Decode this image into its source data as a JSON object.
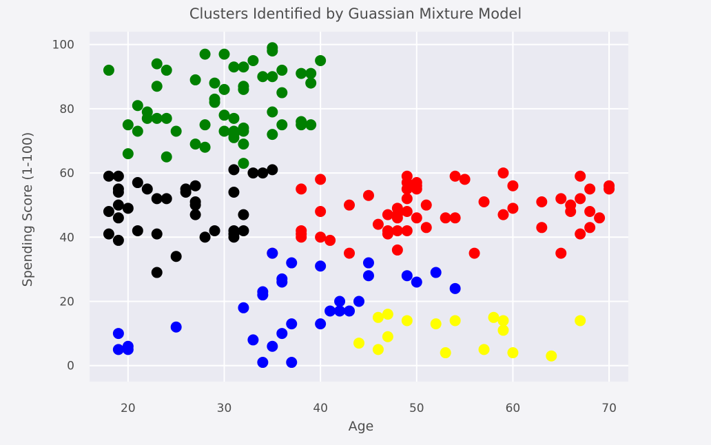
{
  "chart_data": {
    "type": "scatter",
    "title": "Clusters Identified by Guassian Mixture Model",
    "xlabel": "Age",
    "ylabel": "Spending Score (1-100)",
    "xlim": [
      16,
      72
    ],
    "ylim": [
      -5,
      104
    ],
    "xticks": [
      20,
      30,
      40,
      50,
      60,
      70
    ],
    "yticks": [
      0,
      20,
      40,
      60,
      80,
      100
    ],
    "grid": true,
    "background": "#eaeaf2",
    "series": [
      {
        "color": "#008000",
        "points": [
          [
            18,
            92
          ],
          [
            20,
            75
          ],
          [
            20,
            66
          ],
          [
            21,
            81
          ],
          [
            21,
            73
          ],
          [
            22,
            79
          ],
          [
            22,
            77
          ],
          [
            23,
            94
          ],
          [
            23,
            87
          ],
          [
            23,
            77
          ],
          [
            24,
            92
          ],
          [
            24,
            77
          ],
          [
            24,
            65
          ],
          [
            25,
            73
          ],
          [
            27,
            89
          ],
          [
            27,
            69
          ],
          [
            28,
            97
          ],
          [
            28,
            75
          ],
          [
            28,
            68
          ],
          [
            29,
            88
          ],
          [
            29,
            83
          ],
          [
            29,
            82
          ],
          [
            30,
            86
          ],
          [
            30,
            97
          ],
          [
            30,
            73
          ],
          [
            30,
            78
          ],
          [
            31,
            93
          ],
          [
            31,
            77
          ],
          [
            31,
            73
          ],
          [
            31,
            71
          ],
          [
            31,
            72
          ],
          [
            32,
            93
          ],
          [
            32,
            87
          ],
          [
            32,
            86
          ],
          [
            32,
            74
          ],
          [
            32,
            73
          ],
          [
            32,
            69
          ],
          [
            32,
            63
          ],
          [
            33,
            95
          ],
          [
            34,
            90
          ],
          [
            35,
            99
          ],
          [
            35,
            98
          ],
          [
            35,
            90
          ],
          [
            35,
            79
          ],
          [
            35,
            72
          ],
          [
            36,
            92
          ],
          [
            36,
            85
          ],
          [
            36,
            75
          ],
          [
            38,
            91
          ],
          [
            38,
            76
          ],
          [
            38,
            75
          ],
          [
            39,
            91
          ],
          [
            39,
            88
          ],
          [
            39,
            75
          ],
          [
            40,
            95
          ]
        ]
      },
      {
        "color": "#000000",
        "points": [
          [
            18,
            59
          ],
          [
            18,
            48
          ],
          [
            18,
            41
          ],
          [
            19,
            59
          ],
          [
            19,
            55
          ],
          [
            19,
            54
          ],
          [
            19,
            50
          ],
          [
            19,
            46
          ],
          [
            19,
            39
          ],
          [
            20,
            49
          ],
          [
            21,
            57
          ],
          [
            21,
            42
          ],
          [
            22,
            55
          ],
          [
            23,
            52
          ],
          [
            23,
            41
          ],
          [
            23,
            29
          ],
          [
            24,
            52
          ],
          [
            25,
            34
          ],
          [
            26,
            55
          ],
          [
            26,
            54
          ],
          [
            27,
            56
          ],
          [
            27,
            51
          ],
          [
            27,
            50
          ],
          [
            27,
            47
          ],
          [
            28,
            40
          ],
          [
            29,
            42
          ],
          [
            31,
            61
          ],
          [
            31,
            54
          ],
          [
            31,
            42
          ],
          [
            31,
            41
          ],
          [
            31,
            40
          ],
          [
            32,
            47
          ],
          [
            32,
            42
          ],
          [
            33,
            60
          ],
          [
            34,
            60
          ],
          [
            35,
            61
          ]
        ]
      },
      {
        "color": "#ff0000",
        "points": [
          [
            35,
            35
          ],
          [
            38,
            55
          ],
          [
            38,
            42
          ],
          [
            38,
            41
          ],
          [
            38,
            40
          ],
          [
            40,
            58
          ],
          [
            40,
            48
          ],
          [
            40,
            40
          ],
          [
            41,
            39
          ],
          [
            43,
            50
          ],
          [
            43,
            35
          ],
          [
            45,
            53
          ],
          [
            46,
            44
          ],
          [
            47,
            47
          ],
          [
            47,
            42
          ],
          [
            47,
            41
          ],
          [
            48,
            49
          ],
          [
            48,
            47
          ],
          [
            48,
            46
          ],
          [
            48,
            42
          ],
          [
            48,
            36
          ],
          [
            49,
            59
          ],
          [
            49,
            57
          ],
          [
            49,
            55
          ],
          [
            49,
            52
          ],
          [
            49,
            48
          ],
          [
            49,
            42
          ],
          [
            50,
            57
          ],
          [
            50,
            56
          ],
          [
            50,
            55
          ],
          [
            50,
            46
          ],
          [
            51,
            50
          ],
          [
            51,
            43
          ],
          [
            53,
            46
          ],
          [
            54,
            59
          ],
          [
            54,
            46
          ],
          [
            55,
            58
          ],
          [
            56,
            35
          ],
          [
            57,
            51
          ],
          [
            59,
            60
          ],
          [
            59,
            47
          ],
          [
            60,
            56
          ],
          [
            60,
            49
          ],
          [
            63,
            51
          ],
          [
            63,
            43
          ],
          [
            65,
            52
          ],
          [
            65,
            35
          ],
          [
            66,
            50
          ],
          [
            66,
            48
          ],
          [
            67,
            59
          ],
          [
            67,
            52
          ],
          [
            67,
            41
          ],
          [
            68,
            55
          ],
          [
            68,
            48
          ],
          [
            68,
            43
          ],
          [
            69,
            46
          ],
          [
            70,
            56
          ],
          [
            70,
            55
          ]
        ]
      },
      {
        "color": "#0000ff",
        "points": [
          [
            19,
            10
          ],
          [
            19,
            5
          ],
          [
            20,
            6
          ],
          [
            20,
            5
          ],
          [
            25,
            12
          ],
          [
            32,
            18
          ],
          [
            33,
            8
          ],
          [
            34,
            23
          ],
          [
            34,
            22
          ],
          [
            34,
            1
          ],
          [
            35,
            6
          ],
          [
            35,
            35
          ],
          [
            36,
            27
          ],
          [
            36,
            26
          ],
          [
            36,
            10
          ],
          [
            37,
            32
          ],
          [
            37,
            13
          ],
          [
            37,
            1
          ],
          [
            40,
            31
          ],
          [
            40,
            13
          ],
          [
            41,
            17
          ],
          [
            42,
            20
          ],
          [
            42,
            17
          ],
          [
            43,
            17
          ],
          [
            44,
            20
          ],
          [
            45,
            32
          ],
          [
            45,
            28
          ],
          [
            49,
            28
          ],
          [
            50,
            26
          ],
          [
            52,
            29
          ],
          [
            54,
            24
          ]
        ]
      },
      {
        "color": "#ffff00",
        "points": [
          [
            44,
            7
          ],
          [
            46,
            15
          ],
          [
            46,
            5
          ],
          [
            47,
            16
          ],
          [
            47,
            9
          ],
          [
            49,
            14
          ],
          [
            52,
            13
          ],
          [
            53,
            4
          ],
          [
            54,
            14
          ],
          [
            57,
            5
          ],
          [
            58,
            15
          ],
          [
            59,
            14
          ],
          [
            59,
            11
          ],
          [
            60,
            4
          ],
          [
            64,
            3
          ],
          [
            67,
            14
          ]
        ]
      }
    ]
  }
}
